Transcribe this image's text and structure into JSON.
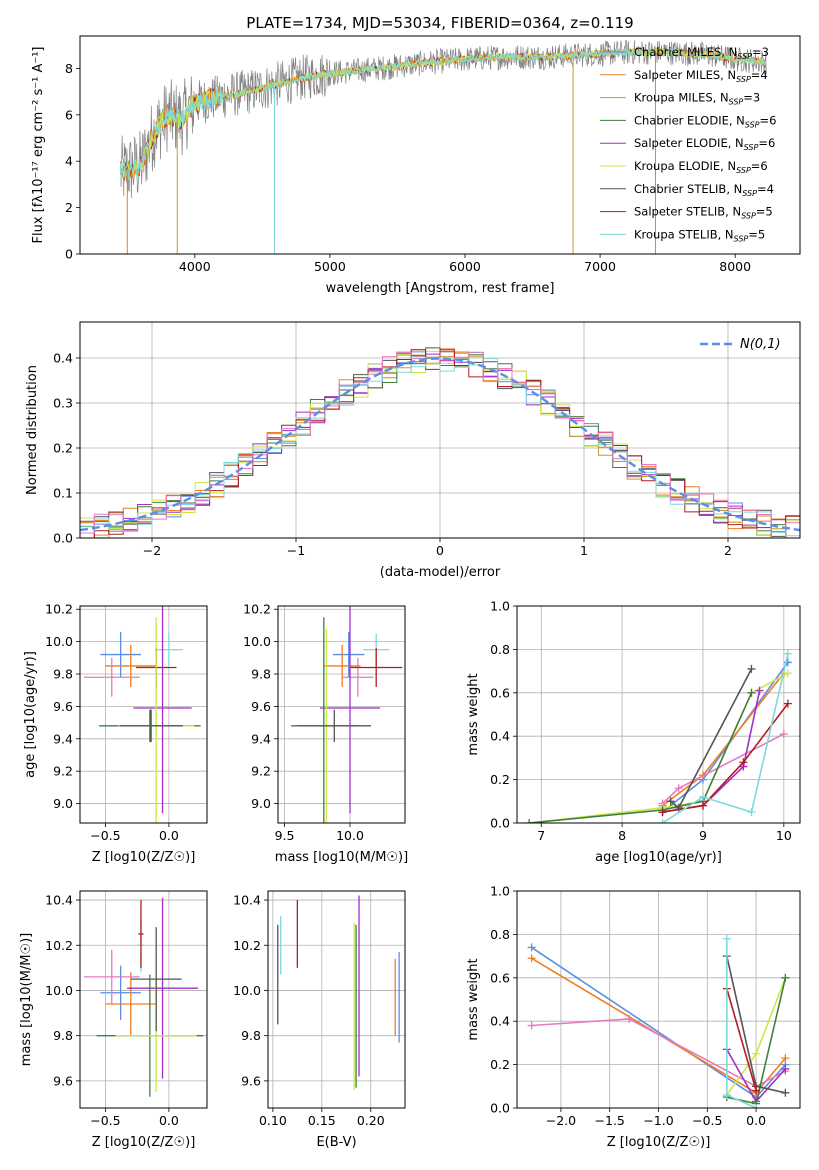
{
  "title": "PLATE=1734, MJD=53034, FIBERID=0364, z=0.119",
  "colors": {
    "chabrier_miles": "#5b8ee6",
    "salpeter_miles": "#f07d1e",
    "kroupa_miles": "#cc9a2a",
    "chabrier_elodie": "#3f7f3f",
    "salpeter_elodie": "#a12fc8",
    "kroupa_elodie": "#c9e84a",
    "chabrier_stelib": "#555555",
    "salpeter_stelib": "#b21e1e",
    "kroupa_stelib": "#7fd8d8",
    "pink": "#e57bc1",
    "data": "#808080",
    "normal": "#5b8ee6",
    "grid": "#b0b0b0"
  },
  "chart_data": [
    {
      "id": "spectrum",
      "type": "line",
      "xlabel": "wavelength [Angstrom, rest frame]",
      "ylabel": "Flux [fλ10⁻¹⁷ erg cm⁻² s⁻¹ A⁻¹]",
      "xlim": [
        3150,
        8480
      ],
      "ylim": [
        0,
        9.4
      ],
      "xticks": [
        4000,
        5000,
        6000,
        7000,
        8000
      ],
      "yticks": [
        0,
        2,
        4,
        6,
        8
      ],
      "grid": false,
      "legend_position": "right",
      "legend": [
        {
          "label": "Chabrier MILES, N_SSP=3",
          "color": "chabrier_miles"
        },
        {
          "label": "Salpeter MILES, N_SSP=4",
          "color": "salpeter_miles"
        },
        {
          "label": "Kroupa MILES, N_SSP=3",
          "color": "kroupa_miles"
        },
        {
          "label": "Chabrier ELODIE, N_SSP=6",
          "color": "chabrier_elodie"
        },
        {
          "label": "Salpeter ELODIE, N_SSP=6",
          "color": "salpeter_elodie"
        },
        {
          "label": "Kroupa ELODIE, N_SSP=6",
          "color": "kroupa_elodie"
        },
        {
          "label": "Chabrier STELIB, N_SSP=4",
          "color": "chabrier_stelib"
        },
        {
          "label": "Salpeter STELIB, N_SSP=5",
          "color": "salpeter_stelib"
        },
        {
          "label": "Kroupa STELIB, N_SSP=5",
          "color": "kroupa_stelib"
        }
      ],
      "continuum": [
        [
          3450,
          3.5
        ],
        [
          3600,
          3.8
        ],
        [
          3700,
          5.3
        ],
        [
          3800,
          6.0
        ],
        [
          3900,
          5.8
        ],
        [
          4000,
          6.5
        ],
        [
          4200,
          6.8
        ],
        [
          4400,
          7.0
        ],
        [
          4600,
          7.3
        ],
        [
          4800,
          7.6
        ],
        [
          5000,
          7.8
        ],
        [
          5200,
          7.9
        ],
        [
          5500,
          8.1
        ],
        [
          5800,
          8.3
        ],
        [
          6000,
          8.4
        ],
        [
          6300,
          8.5
        ],
        [
          6600,
          8.5
        ],
        [
          6900,
          8.6
        ],
        [
          7200,
          8.7
        ],
        [
          7500,
          8.7
        ],
        [
          7800,
          8.6
        ],
        [
          8000,
          8.4
        ],
        [
          8200,
          8.3
        ]
      ]
    },
    {
      "id": "residual_histogram",
      "type": "bar",
      "xlabel": "(data-model)/error",
      "ylabel": "Normed distribution",
      "xlim": [
        -2.5,
        2.5
      ],
      "ylim": [
        0,
        0.48
      ],
      "xticks": [
        -2,
        -1,
        0,
        1,
        2
      ],
      "yticks": [
        0.0,
        0.1,
        0.2,
        0.3,
        0.4
      ],
      "grid": true,
      "legend": [
        {
          "label": "N(0,1)",
          "color": "normal",
          "style": "dashed"
        }
      ],
      "bin_width": 0.1,
      "curve": "normal pdf, mean 0, sigma 1"
    },
    {
      "id": "age_vs_Z",
      "type": "scatter",
      "xlabel": "Z [log10(Z/Z☉)]",
      "ylabel": "age  [log10(age/yr)]",
      "xlim": [
        -0.7,
        0.3
      ],
      "ylim": [
        8.88,
        10.22
      ],
      "xticks": [
        -0.5,
        0.0
      ],
      "yticks": [
        9.0,
        9.2,
        9.4,
        9.6,
        9.8,
        10.0,
        10.2
      ],
      "grid": true,
      "points": [
        {
          "x": -0.38,
          "y": 9.92,
          "xerr": 0.16,
          "yerr": 0.14,
          "color": "chabrier_miles"
        },
        {
          "x": -0.3,
          "y": 9.85,
          "xerr": 0.2,
          "yerr": 0.13,
          "color": "salpeter_miles"
        },
        {
          "x": -0.45,
          "y": 9.78,
          "xerr": 0.22,
          "yerr": 0.12,
          "color": "pink"
        },
        {
          "x": 0.0,
          "y": 9.95,
          "xerr": 0.11,
          "yerr": 0.1,
          "color": "kroupa_stelib"
        },
        {
          "x": -0.1,
          "y": 9.84,
          "xerr": 0.16,
          "yerr": 0.12,
          "color": "salpeter_stelib"
        },
        {
          "x": -0.05,
          "y": 9.59,
          "xerr": 0.23,
          "yerr": 0.65,
          "color": "salpeter_elodie"
        },
        {
          "x": -0.15,
          "y": 9.48,
          "xerr": 0.4,
          "yerr": 0.1,
          "color": "chabrier_elodie"
        },
        {
          "x": -0.1,
          "y": 9.48,
          "xerr": 0.3,
          "yerr": 0.67,
          "color": "kroupa_elodie"
        },
        {
          "x": -0.14,
          "y": 9.48,
          "xerr": 0.25,
          "yerr": 0.1,
          "color": "chabrier_stelib"
        }
      ]
    },
    {
      "id": "age_vs_mass",
      "type": "scatter",
      "xlabel": "mass [log10(M/M☉)]",
      "xlim": [
        9.45,
        10.42
      ],
      "ylim": [
        8.88,
        10.22
      ],
      "xticks": [
        9.5,
        10.0
      ],
      "yticks": [
        9.0,
        9.2,
        9.4,
        9.6,
        9.8,
        10.0,
        10.2
      ],
      "grid": true,
      "points": [
        {
          "x": 9.99,
          "y": 9.92,
          "xerr": 0.12,
          "yerr": 0.14,
          "color": "chabrier_miles"
        },
        {
          "x": 9.94,
          "y": 9.85,
          "xerr": 0.14,
          "yerr": 0.13,
          "color": "salpeter_miles"
        },
        {
          "x": 10.06,
          "y": 9.78,
          "xerr": 0.12,
          "yerr": 0.12,
          "color": "pink"
        },
        {
          "x": 10.2,
          "y": 9.95,
          "xerr": 0.1,
          "yerr": 0.1,
          "color": "kroupa_stelib"
        },
        {
          "x": 10.2,
          "y": 9.84,
          "xerr": 0.2,
          "yerr": 0.12,
          "color": "salpeter_stelib"
        },
        {
          "x": 10.0,
          "y": 9.59,
          "xerr": 0.23,
          "yerr": 0.65,
          "color": "salpeter_elodie"
        },
        {
          "x": 9.8,
          "y": 9.48,
          "xerr": 0.25,
          "yerr": 0.67,
          "color": "chabrier_elodie"
        },
        {
          "x": 9.82,
          "y": 9.48,
          "xerr": 0.2,
          "yerr": 0.6,
          "color": "kroupa_elodie"
        },
        {
          "x": 9.88,
          "y": 9.48,
          "xerr": 0.28,
          "yerr": 0.1,
          "color": "chabrier_stelib"
        }
      ]
    },
    {
      "id": "mass_weight_vs_age",
      "type": "line",
      "xlabel": "age  [log10(age/yr)]",
      "ylabel": "mass weight",
      "xlim": [
        6.7,
        10.2
      ],
      "ylim": [
        0,
        1.0
      ],
      "xticks": [
        7,
        8,
        9,
        10
      ],
      "yticks": [
        0.0,
        0.2,
        0.4,
        0.6,
        0.8,
        1.0
      ],
      "grid": true,
      "series": [
        {
          "color": "chabrier_miles",
          "x": [
            8.5,
            9.0,
            10.05
          ],
          "y": [
            0.05,
            0.2,
            0.74
          ]
        },
        {
          "color": "salpeter_miles",
          "x": [
            8.5,
            9.0,
            10.0
          ],
          "y": [
            0.08,
            0.22,
            0.69
          ]
        },
        {
          "color": "pink",
          "x": [
            8.5,
            8.7,
            10.0
          ],
          "y": [
            0.09,
            0.16,
            0.41
          ]
        },
        {
          "color": "kroupa_elodie",
          "x": [
            6.85,
            8.5,
            9.0,
            9.6,
            10.05
          ],
          "y": [
            0.0,
            0.07,
            0.1,
            0.6,
            0.69
          ]
        },
        {
          "color": "salpeter_elodie",
          "x": [
            8.5,
            9.0,
            9.5,
            9.7
          ],
          "y": [
            0.05,
            0.08,
            0.26,
            0.61
          ]
        },
        {
          "color": "chabrier_elodie",
          "x": [
            6.85,
            8.5,
            9.0,
            9.6
          ],
          "y": [
            0.0,
            0.06,
            0.1,
            0.6
          ]
        },
        {
          "color": "chabrier_stelib",
          "x": [
            8.6,
            8.7,
            9.6
          ],
          "y": [
            0.1,
            0.07,
            0.71
          ]
        },
        {
          "color": "salpeter_stelib",
          "x": [
            8.5,
            9.0,
            9.5,
            10.05
          ],
          "y": [
            0.05,
            0.08,
            0.28,
            0.55
          ]
        },
        {
          "color": "kroupa_stelib",
          "x": [
            8.5,
            9.0,
            9.6,
            10.05
          ],
          "y": [
            0.0,
            0.12,
            0.05,
            0.78
          ]
        }
      ]
    },
    {
      "id": "mass_vs_Z",
      "type": "scatter",
      "xlabel": "Z [log10(Z/Z☉)]",
      "ylabel": "mass [log10(M/M☉)]",
      "xlim": [
        -0.7,
        0.3
      ],
      "ylim": [
        9.48,
        10.44
      ],
      "xticks": [
        -0.5,
        0.0
      ],
      "yticks": [
        9.6,
        9.8,
        10.0,
        10.2,
        10.4
      ],
      "grid": true,
      "points": [
        {
          "x": -0.38,
          "y": 9.99,
          "xerr": 0.16,
          "yerr": 0.12,
          "color": "chabrier_miles"
        },
        {
          "x": -0.3,
          "y": 9.94,
          "xerr": 0.2,
          "yerr": 0.14,
          "color": "salpeter_miles"
        },
        {
          "x": -0.45,
          "y": 10.06,
          "xerr": 0.22,
          "yerr": 0.12,
          "color": "pink"
        },
        {
          "x": -0.22,
          "y": 10.2,
          "xerr": 0.03,
          "yerr": 0.12,
          "color": "kroupa_stelib"
        },
        {
          "x": -0.22,
          "y": 10.25,
          "xerr": 0.02,
          "yerr": 0.15,
          "color": "salpeter_stelib"
        },
        {
          "x": -0.05,
          "y": 10.01,
          "xerr": 0.28,
          "yerr": 0.4,
          "color": "salpeter_elodie"
        },
        {
          "x": -0.15,
          "y": 9.8,
          "xerr": 0.42,
          "yerr": 0.27,
          "color": "chabrier_elodie"
        },
        {
          "x": -0.1,
          "y": 9.8,
          "xerr": 0.32,
          "yerr": 0.25,
          "color": "kroupa_elodie"
        },
        {
          "x": -0.1,
          "y": 10.05,
          "xerr": 0.2,
          "yerr": 0.23,
          "color": "chabrier_stelib"
        }
      ]
    },
    {
      "id": "mass_vs_ebv",
      "type": "scatter",
      "xlabel": "E(B-V)",
      "xlim": [
        0.095,
        0.235
      ],
      "ylim": [
        9.48,
        10.44
      ],
      "xticks": [
        0.1,
        0.15,
        0.2
      ],
      "yticks": [
        9.6,
        9.8,
        10.0,
        10.2,
        10.4
      ],
      "grid": true,
      "points": [
        {
          "x": 0.105,
          "y": 10.07,
          "xerr": 0,
          "yerr": 0.22,
          "color": "chabrier_stelib"
        },
        {
          "x": 0.108,
          "y": 10.2,
          "xerr": 0,
          "yerr": 0.13,
          "color": "kroupa_stelib"
        },
        {
          "x": 0.125,
          "y": 10.25,
          "xerr": 0,
          "yerr": 0.15,
          "color": "salpeter_stelib"
        },
        {
          "x": 0.183,
          "y": 9.93,
          "xerr": 0,
          "yerr": 0.37,
          "color": "kroupa_elodie"
        },
        {
          "x": 0.185,
          "y": 9.93,
          "xerr": 0,
          "yerr": 0.36,
          "color": "chabrier_elodie"
        },
        {
          "x": 0.188,
          "y": 10.02,
          "xerr": 0,
          "yerr": 0.4,
          "color": "salpeter_elodie"
        },
        {
          "x": 0.225,
          "y": 9.97,
          "xerr": 0,
          "yerr": 0.17,
          "color": "salpeter_miles"
        },
        {
          "x": 0.229,
          "y": 9.97,
          "xerr": 0,
          "yerr": 0.2,
          "color": "chabrier_miles"
        }
      ]
    },
    {
      "id": "mass_weight_vs_Z",
      "type": "line",
      "xlabel": "Z [log10(Z/Z☉)]",
      "ylabel": "mass weight",
      "xlim": [
        -2.45,
        0.45
      ],
      "ylim": [
        0,
        1.0
      ],
      "xticks": [
        -2.0,
        -1.5,
        -1.0,
        -0.5,
        0.0
      ],
      "yticks": [
        0.0,
        0.2,
        0.4,
        0.6,
        0.8,
        1.0
      ],
      "grid": true,
      "series": [
        {
          "color": "chabrier_miles",
          "x": [
            -2.3,
            0.0,
            0.3
          ],
          "y": [
            0.74,
            0.05,
            0.2
          ]
        },
        {
          "color": "salpeter_miles",
          "x": [
            -2.3,
            0.0,
            0.3
          ],
          "y": [
            0.69,
            0.07,
            0.23
          ]
        },
        {
          "color": "pink",
          "x": [
            -2.3,
            -1.3,
            0.0,
            0.3
          ],
          "y": [
            0.38,
            0.41,
            0.1,
            0.17
          ]
        },
        {
          "color": "kroupa_elodie",
          "x": [
            -0.3,
            0.0,
            0.3
          ],
          "y": [
            0.06,
            0.25,
            0.6
          ]
        },
        {
          "color": "salpeter_elodie",
          "x": [
            -0.3,
            0.0,
            0.3
          ],
          "y": [
            0.27,
            0.03,
            0.18
          ]
        },
        {
          "color": "chabrier_elodie",
          "x": [
            -0.3,
            0.0,
            0.3
          ],
          "y": [
            0.05,
            0.02,
            0.6
          ]
        },
        {
          "color": "chabrier_stelib",
          "x": [
            -0.3,
            0.0,
            0.3
          ],
          "y": [
            0.7,
            0.1,
            0.07
          ]
        },
        {
          "color": "salpeter_stelib",
          "x": [
            -0.3,
            0.0
          ],
          "y": [
            0.55,
            0.08
          ]
        },
        {
          "color": "kroupa_stelib",
          "x": [
            -0.3,
            -0.3,
            0.0
          ],
          "y": [
            0.78,
            0.06,
            0.0
          ]
        }
      ]
    }
  ]
}
